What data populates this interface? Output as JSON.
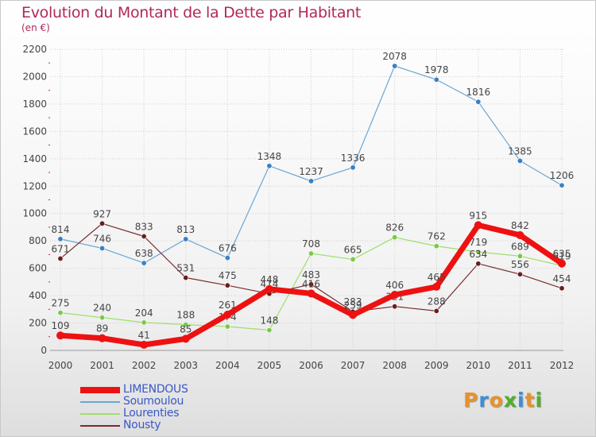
{
  "title": "Evolution du Montant de la Dette par Habitant",
  "subtitle": "(en €)",
  "logo": {
    "text": "Proxiti",
    "letter_colors": [
      "#e8922a",
      "#3a8fd8",
      "#e8922a",
      "#4fb02a",
      "#3a8fd8",
      "#e8922a",
      "#4fb02a"
    ]
  },
  "chart_data": {
    "type": "line",
    "x": [
      "2000",
      "2001",
      "2002",
      "2003",
      "2004",
      "2005",
      "2006",
      "2007",
      "2008",
      "2009",
      "2010",
      "2011",
      "2012"
    ],
    "ylim": [
      0,
      2200
    ],
    "yticks": [
      0,
      200,
      400,
      600,
      800,
      1000,
      1200,
      1400,
      1600,
      1800,
      2000,
      2200
    ],
    "grid": true,
    "legend_position": "bottom-left",
    "series": [
      {
        "name": "Soumoulou",
        "color": "#6aa6d4",
        "marker_color": "#3a7fc4",
        "values": [
          814,
          746,
          638,
          813,
          676,
          1348,
          1237,
          1336,
          2078,
          1978,
          1816,
          1385,
          1206
        ]
      },
      {
        "name": "Lourenties",
        "color": "#9ee06a",
        "marker_color": "#7ac84a",
        "values": [
          275,
          240,
          204,
          188,
          174,
          148,
          708,
          665,
          826,
          762,
          719,
          689,
          619
        ]
      },
      {
        "name": "Nousty",
        "color": "#7a2c2c",
        "marker_color": "#6a1e1e",
        "values": [
          671,
          927,
          833,
          531,
          475,
          414,
          483,
          283,
          321,
          288,
          634,
          556,
          454
        ]
      },
      {
        "name": "LIMENDOUS",
        "color": "#ee1111",
        "marker_color": "#ee1111",
        "values": [
          109,
          89,
          41,
          85,
          261,
          448,
          416,
          259,
          406,
          465,
          915,
          842,
          635
        ]
      }
    ]
  }
}
